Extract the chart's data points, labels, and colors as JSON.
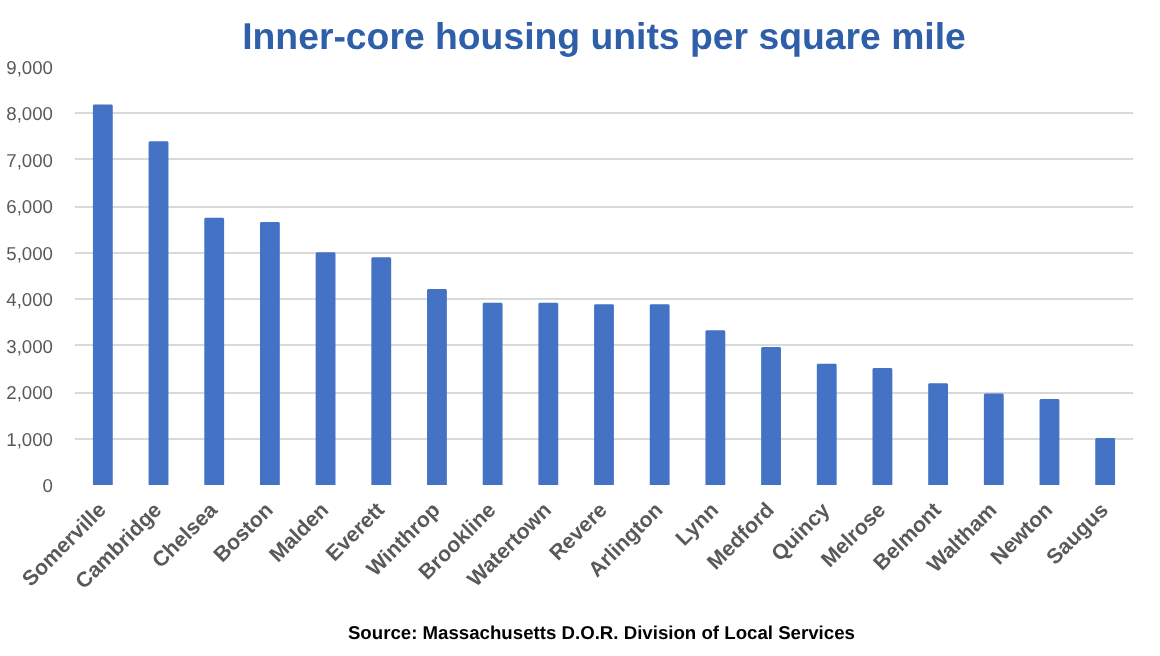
{
  "chart_data": {
    "type": "bar",
    "title": "Inner-core housing units per square mile",
    "categories": [
      "Somerville",
      "Cambridge",
      "Chelsea",
      "Boston",
      "Malden",
      "Everett",
      "Winthrop",
      "Brookline",
      "Watertown",
      "Revere",
      "Arlington",
      "Lynn",
      "Medford",
      "Quincy",
      "Melrose",
      "Belmont",
      "Waltham",
      "Newton",
      "Saugus"
    ],
    "values": [
      8170,
      7380,
      5730,
      5640,
      4990,
      4880,
      4200,
      3900,
      3900,
      3870,
      3870,
      3310,
      2950,
      2590,
      2500,
      2170,
      1950,
      1830,
      990
    ],
    "color": "#4472c4",
    "ylim": [
      0,
      9000
    ],
    "yticks": [
      {
        "value": 0,
        "label": "0"
      },
      {
        "value": 1000,
        "label": "1,000"
      },
      {
        "value": 2000,
        "label": "2,000"
      },
      {
        "value": 3000,
        "label": "3,000"
      },
      {
        "value": 4000,
        "label": "4,000"
      },
      {
        "value": 5000,
        "label": "5,000"
      },
      {
        "value": 6000,
        "label": "6,000"
      },
      {
        "value": 7000,
        "label": "7,000"
      },
      {
        "value": 8000,
        "label": "8,000"
      },
      {
        "value": 9000,
        "label": "9,000"
      }
    ],
    "grid": "y",
    "annotations": [
      "Source:  Massachusetts D.O.R. Division of Local Services"
    ]
  }
}
